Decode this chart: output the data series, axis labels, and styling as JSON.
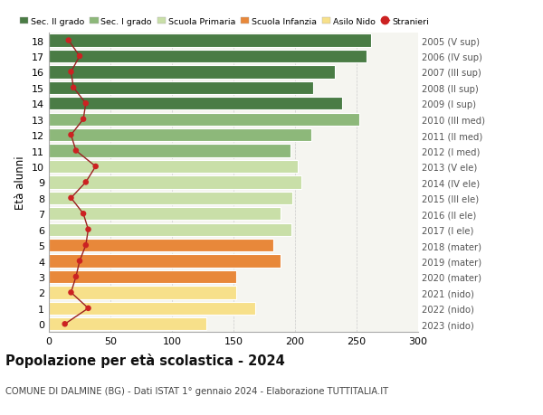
{
  "ages": [
    0,
    1,
    2,
    3,
    4,
    5,
    6,
    7,
    8,
    9,
    10,
    11,
    12,
    13,
    14,
    15,
    16,
    17,
    18
  ],
  "bar_values": [
    128,
    168,
    152,
    152,
    188,
    182,
    197,
    188,
    198,
    205,
    202,
    196,
    213,
    252,
    238,
    215,
    232,
    258,
    262
  ],
  "stranieri": [
    13,
    32,
    18,
    22,
    25,
    30,
    32,
    28,
    18,
    30,
    38,
    22,
    18,
    28,
    30,
    20,
    18,
    25,
    16
  ],
  "bar_colors": [
    "#f7e08a",
    "#f7e08a",
    "#f7e08a",
    "#e8883a",
    "#e8883a",
    "#e8883a",
    "#c9dfa8",
    "#c9dfa8",
    "#c9dfa8",
    "#c9dfa8",
    "#c9dfa8",
    "#8db87a",
    "#8db87a",
    "#8db87a",
    "#4a7c45",
    "#4a7c45",
    "#4a7c45",
    "#4a7c45",
    "#4a7c45"
  ],
  "right_labels": [
    "2023 (nido)",
    "2022 (nido)",
    "2021 (nido)",
    "2020 (mater)",
    "2019 (mater)",
    "2018 (mater)",
    "2017 (I ele)",
    "2016 (II ele)",
    "2015 (III ele)",
    "2014 (IV ele)",
    "2013 (V ele)",
    "2012 (I med)",
    "2011 (II med)",
    "2010 (III med)",
    "2009 (I sup)",
    "2008 (II sup)",
    "2007 (III sup)",
    "2006 (IV sup)",
    "2005 (V sup)"
  ],
  "legend_labels": [
    "Sec. II grado",
    "Sec. I grado",
    "Scuola Primaria",
    "Scuola Infanzia",
    "Asilo Nido",
    "Stranieri"
  ],
  "legend_colors": [
    "#4a7c45",
    "#8db87a",
    "#c9dfa8",
    "#e8883a",
    "#f7e08a",
    "#cc2222"
  ],
  "title": "Popolazione per età scolastica - 2024",
  "subtitle": "COMUNE DI DALMINE (BG) - Dati ISTAT 1° gennaio 2024 - Elaborazione TUTTITALIA.IT",
  "ylabel": "Età alunni",
  "xlim": [
    0,
    300
  ],
  "xticks": [
    0,
    50,
    100,
    150,
    200,
    250,
    300
  ],
  "plot_bgcolor": "#f5f5f0",
  "fig_bgcolor": "#ffffff"
}
